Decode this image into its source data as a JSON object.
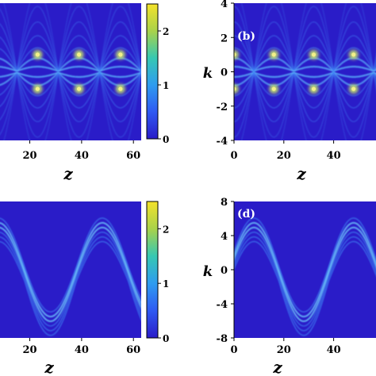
{
  "chart_data": [
    {
      "panel": "a",
      "type": "heatmap",
      "title": "",
      "xlabel": "z",
      "ylabel": "",
      "x_ticks": [
        "20",
        "40",
        "60"
      ],
      "y_ticks": [],
      "description_pattern": "periodic focusing; bright spots at k = ±1",
      "bright_spots": [
        {
          "z": 23,
          "k": 1
        },
        {
          "z": 23,
          "k": -1
        },
        {
          "z": 39,
          "k": 1
        },
        {
          "z": 39,
          "k": -1
        },
        {
          "z": 55,
          "k": 1
        },
        {
          "z": 55,
          "k": -1
        }
      ],
      "colorbar": {
        "ticks": [
          "0",
          "1",
          "2"
        ],
        "range": [
          0,
          2.5
        ]
      }
    },
    {
      "panel": "b",
      "type": "heatmap",
      "title": "(b)",
      "xlabel": "z",
      "ylabel": "k",
      "x_ticks": [
        "0",
        "20",
        "40"
      ],
      "y_ticks": [
        "4",
        "2",
        "0",
        "-2",
        "-4"
      ],
      "ylim": [
        -4,
        4
      ],
      "bright_spots": [
        {
          "z": 0,
          "k": 1
        },
        {
          "z": 0,
          "k": -1
        },
        {
          "z": 16,
          "k": 1
        },
        {
          "z": 16,
          "k": -1
        },
        {
          "z": 32,
          "k": 1
        },
        {
          "z": 32,
          "k": -1
        },
        {
          "z": 48,
          "k": 1
        },
        {
          "z": 48,
          "k": -1
        }
      ]
    },
    {
      "panel": "c",
      "type": "heatmap",
      "title": "",
      "xlabel": "z",
      "ylabel": "",
      "x_ticks": [
        "20",
        "40",
        "60"
      ],
      "y_ticks": [],
      "description_pattern": "sinusoidal oscillation of momentum bands",
      "colorbar": {
        "ticks": [
          "0",
          "1",
          "2"
        ],
        "range": [
          0,
          2.5
        ]
      }
    },
    {
      "panel": "d",
      "type": "heatmap",
      "title": "(d)",
      "xlabel": "z",
      "ylabel": "k",
      "x_ticks": [
        "0",
        "20",
        "40"
      ],
      "y_ticks": [
        "8",
        "4",
        "0",
        "-4",
        "-8"
      ],
      "ylim": [
        -8,
        8
      ]
    }
  ]
}
